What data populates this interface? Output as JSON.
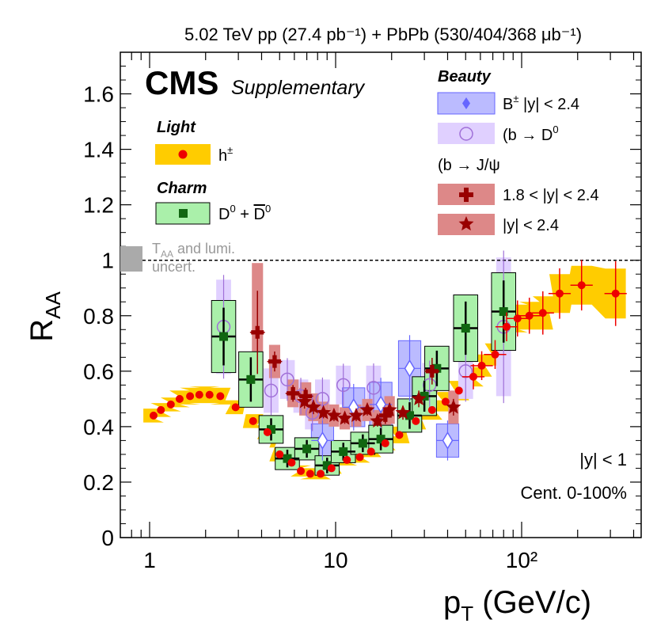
{
  "chart_data": {
    "type": "scatter",
    "title": "5.02 TeV pp (27.4 pb⁻¹) + PbPb (530/404/368 μb⁻¹)",
    "xlabel": "p_T (GeV/c)",
    "ylabel": "R_AA",
    "xscale": "log",
    "xlim": [
      0.75,
      400
    ],
    "ylim": [
      0,
      1.75
    ],
    "x_tick_labels": [
      "1",
      "10",
      "10²"
    ],
    "y_tick_labels": [
      "0",
      "0.2",
      "0.4",
      "0.6",
      "0.8",
      "1",
      "1.2",
      "1.4",
      "1.6"
    ],
    "cms_label": "CMS",
    "cms_sublabel": "Supplementary",
    "annotation_eta": "|y| < 1",
    "annotation_cent": "Cent. 0-100%",
    "taa_label_line1": "T_AA and lumi.",
    "taa_label_line2": "uncert.",
    "reference_line": 1.0,
    "legend": {
      "light_header": "Light",
      "charm_header": "Charm",
      "beauty_header": "Beauty",
      "jpsi_header": "(b → J/ψ",
      "entries": {
        "h": "h±",
        "d0": "D⁰ + D̄⁰",
        "bplus": "B± |y| < 2.4",
        "btod0": "(b → D⁰",
        "jpsi_fwd": "1.8 < |y| < 2.4",
        "jpsi_mid": "|y| < 2.4"
      }
    },
    "series": [
      {
        "name": "h±",
        "color": "#ee0000",
        "band_color": "#ffcc00",
        "points": [
          [
            1.05,
            0.44,
            0.025
          ],
          [
            1.15,
            0.46,
            0.025
          ],
          [
            1.3,
            0.48,
            0.025
          ],
          [
            1.45,
            0.5,
            0.03
          ],
          [
            1.65,
            0.51,
            0.03
          ],
          [
            1.85,
            0.515,
            0.03
          ],
          [
            2.1,
            0.515,
            0.03
          ],
          [
            2.4,
            0.51,
            0.03
          ],
          [
            2.9,
            0.47,
            0.025
          ],
          [
            3.6,
            0.42,
            0.025
          ],
          [
            4.3,
            0.38,
            0.025
          ],
          [
            5.0,
            0.3,
            0.025
          ],
          [
            5.8,
            0.27,
            0.025
          ],
          [
            6.5,
            0.24,
            0.02
          ],
          [
            7.3,
            0.23,
            0.02
          ],
          [
            8.3,
            0.23,
            0.02
          ],
          [
            9.5,
            0.25,
            0.02
          ],
          [
            11.5,
            0.28,
            0.02
          ],
          [
            13.5,
            0.29,
            0.02
          ],
          [
            15.5,
            0.31,
            0.02
          ],
          [
            18.5,
            0.34,
            0.025
          ],
          [
            22,
            0.37,
            0.03
          ],
          [
            27,
            0.42,
            0.03
          ],
          [
            33,
            0.46,
            0.035
          ],
          [
            39,
            0.49,
            0.035
          ],
          [
            46,
            0.53,
            0.035
          ],
          [
            55,
            0.58,
            0.035
          ],
          [
            61,
            0.62,
            0.04
          ],
          [
            72,
            0.66,
            0.04
          ],
          [
            83,
            0.76,
            0.04
          ],
          [
            95,
            0.79,
            0.05
          ],
          [
            110,
            0.8,
            0.05
          ],
          [
            130,
            0.81,
            0.06
          ],
          [
            160,
            0.88,
            0.07
          ],
          [
            210,
            0.91,
            0.07
          ],
          [
            320,
            0.88,
            0.09
          ]
        ]
      },
      {
        "name": "D⁰ + D̄⁰",
        "color": "#116611",
        "box_color": "#aaf0aa",
        "points": [
          [
            2.5,
            0.725,
            0.13
          ],
          [
            3.5,
            0.57,
            0.1
          ],
          [
            4.5,
            0.39,
            0.05
          ],
          [
            5.5,
            0.285,
            0.04
          ],
          [
            7.0,
            0.32,
            0.04
          ],
          [
            9.0,
            0.26,
            0.035
          ],
          [
            11.0,
            0.31,
            0.04
          ],
          [
            14.0,
            0.34,
            0.04
          ],
          [
            17.5,
            0.355,
            0.05
          ],
          [
            25,
            0.44,
            0.06
          ],
          [
            30,
            0.51,
            0.07
          ],
          [
            35,
            0.61,
            0.08
          ],
          [
            50,
            0.755,
            0.12
          ],
          [
            80,
            0.815,
            0.14
          ]
        ]
      },
      {
        "name": "B± |y| < 2.4",
        "color": "#6666ff",
        "box_color": "#bbbbff",
        "points": [
          [
            8.5,
            0.35,
            0.06
          ],
          [
            12.5,
            0.47,
            0.07
          ],
          [
            17.5,
            0.48,
            0.08
          ],
          [
            25,
            0.61,
            0.1
          ],
          [
            40,
            0.35,
            0.06
          ]
        ]
      },
      {
        "name": "(b → D⁰",
        "color": "#a070d8",
        "box_color": "#e0d0ff",
        "points": [
          [
            2.5,
            0.76,
            0.17
          ],
          [
            4.5,
            0.53,
            0.08
          ],
          [
            5.5,
            0.57,
            0.07
          ],
          [
            6.5,
            0.51,
            0.06
          ],
          [
            7.5,
            0.45,
            0.06
          ],
          [
            8.5,
            0.5,
            0.07
          ],
          [
            11,
            0.55,
            0.07
          ],
          [
            16,
            0.54,
            0.08
          ],
          [
            32,
            0.55,
            0.08
          ],
          [
            50,
            0.6,
            0.1
          ],
          [
            80,
            0.76,
            0.25
          ]
        ]
      },
      {
        "name": "1.8 < |y| < 2.4",
        "color": "#990000",
        "box_color": "#dd8888",
        "points": [
          [
            3.8,
            0.74,
            0.25
          ],
          [
            4.7,
            0.635,
            0.06
          ],
          [
            5.9,
            0.52,
            0.05
          ],
          [
            6.9,
            0.51,
            0.05
          ],
          [
            18.5,
            0.44,
            0.05
          ],
          [
            33,
            0.6,
            0.08
          ]
        ]
      },
      {
        "name": "|y| < 2.4",
        "color": "#990000",
        "box_color": "#dd8888",
        "points": [
          [
            6.8,
            0.49,
            0.05
          ],
          [
            7.6,
            0.47,
            0.05
          ],
          [
            8.6,
            0.45,
            0.04
          ],
          [
            9.8,
            0.44,
            0.04
          ],
          [
            11.2,
            0.43,
            0.04
          ],
          [
            12.9,
            0.44,
            0.04
          ],
          [
            14.8,
            0.46,
            0.04
          ],
          [
            16.8,
            0.42,
            0.04
          ],
          [
            19.5,
            0.46,
            0.05
          ],
          [
            23,
            0.45,
            0.05
          ],
          [
            28,
            0.5,
            0.06
          ],
          [
            43,
            0.47,
            0.06
          ]
        ]
      }
    ]
  }
}
